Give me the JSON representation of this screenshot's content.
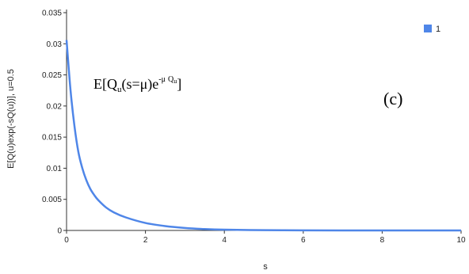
{
  "chart_data": {
    "type": "line",
    "title": "",
    "xlabel": "s",
    "ylabel": "E[Q(u)exp(-sQ(u))], u=0.5",
    "xlim": [
      0,
      10
    ],
    "ylim": [
      0,
      0.035
    ],
    "x_ticks": [
      "0",
      "2",
      "4",
      "6",
      "8",
      "10"
    ],
    "y_ticks": [
      "0",
      "0.005",
      "0.01",
      "0.015",
      "0.02",
      "0.025",
      "0.03",
      "0.035"
    ],
    "grid": false,
    "legend_position": "top-right",
    "series": [
      {
        "name": "1",
        "color": "#4f86e8",
        "x": [
          0,
          0.1,
          0.2,
          0.3,
          0.4,
          0.5,
          0.6,
          0.7,
          0.8,
          1.0,
          1.2,
          1.5,
          2.0,
          2.5,
          3.0,
          3.5,
          4.0,
          5.0,
          6.0,
          7.0,
          8.0,
          9.0,
          10.0
        ],
        "y": [
          0.0306,
          0.0226,
          0.0168,
          0.0126,
          0.01,
          0.0081,
          0.0067,
          0.0057,
          0.0049,
          0.0037,
          0.0029,
          0.0021,
          0.0012,
          0.0007,
          0.0004,
          0.00022,
          0.00012,
          4e-05,
          1e-05,
          0.0,
          0.0,
          0.0,
          0.0
        ]
      }
    ],
    "annotations": {
      "formula_prefix": "E[Q",
      "formula_sub": "u",
      "formula_mid": "(s=μ)e",
      "formula_sup_minus": "-μ",
      "formula_sup_q": "Q",
      "formula_sup_sub": "u",
      "formula_suffix": "]",
      "panel_label": "(c)"
    }
  }
}
